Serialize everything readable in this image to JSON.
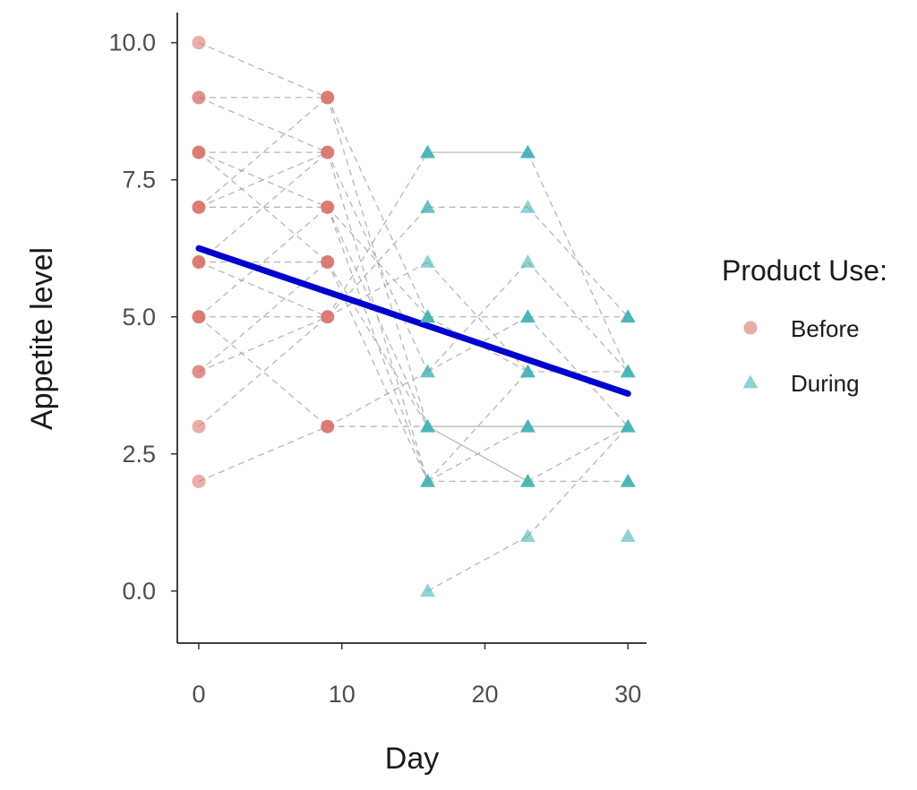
{
  "chart_data": {
    "type": "scatter",
    "xlabel": "Day",
    "ylabel": "Appetite level",
    "xlim": [
      -1.5,
      31.3
    ],
    "ylim": [
      -0.95,
      10.55
    ],
    "x_ticks": [
      0,
      10,
      20,
      30
    ],
    "y_ticks": [
      0,
      2.5,
      5,
      7.5,
      10
    ],
    "x_tick_labels": [
      "0",
      "10",
      "20",
      "30"
    ],
    "y_tick_labels": [
      "0.0",
      "2.5",
      "5.0",
      "7.5",
      "10.0"
    ],
    "grid": false,
    "legend": {
      "title": "Product Use:",
      "position": "right",
      "entries": [
        {
          "label": "Before",
          "shape": "circle",
          "color": "#d9756f"
        },
        {
          "label": "During",
          "shape": "triangle",
          "color": "#44b2b4"
        }
      ]
    },
    "series": [
      {
        "name": "Before",
        "shape": "circle",
        "color": "#d9756f",
        "points": [
          {
            "x": 0,
            "y": 10,
            "n": 1
          },
          {
            "x": 0,
            "y": 9,
            "n": 2
          },
          {
            "x": 0,
            "y": 8,
            "n": 3
          },
          {
            "x": 0,
            "y": 7,
            "n": 3
          },
          {
            "x": 0,
            "y": 6,
            "n": 3
          },
          {
            "x": 0,
            "y": 5,
            "n": 3
          },
          {
            "x": 0,
            "y": 4,
            "n": 2
          },
          {
            "x": 0,
            "y": 3,
            "n": 1
          },
          {
            "x": 0,
            "y": 2,
            "n": 1
          },
          {
            "x": 9,
            "y": 9,
            "n": 3
          },
          {
            "x": 9,
            "y": 8,
            "n": 3
          },
          {
            "x": 9,
            "y": 7,
            "n": 3
          },
          {
            "x": 9,
            "y": 6,
            "n": 3
          },
          {
            "x": 9,
            "y": 5,
            "n": 3
          },
          {
            "x": 9,
            "y": 3,
            "n": 3
          }
        ]
      },
      {
        "name": "During",
        "shape": "triangle",
        "color": "#44b2b4",
        "points": [
          {
            "x": 16,
            "y": 8,
            "n": 3
          },
          {
            "x": 16,
            "y": 7,
            "n": 2
          },
          {
            "x": 16,
            "y": 6,
            "n": 1
          },
          {
            "x": 16,
            "y": 5,
            "n": 3
          },
          {
            "x": 16,
            "y": 4,
            "n": 2
          },
          {
            "x": 16,
            "y": 3,
            "n": 3
          },
          {
            "x": 16,
            "y": 2,
            "n": 3
          },
          {
            "x": 16,
            "y": 0,
            "n": 1
          },
          {
            "x": 23,
            "y": 8,
            "n": 3
          },
          {
            "x": 23,
            "y": 7,
            "n": 1
          },
          {
            "x": 23,
            "y": 6,
            "n": 1
          },
          {
            "x": 23,
            "y": 5,
            "n": 3
          },
          {
            "x": 23,
            "y": 4,
            "n": 3
          },
          {
            "x": 23,
            "y": 3,
            "n": 3
          },
          {
            "x": 23,
            "y": 2,
            "n": 3
          },
          {
            "x": 23,
            "y": 1,
            "n": 1
          },
          {
            "x": 30,
            "y": 5,
            "n": 3
          },
          {
            "x": 30,
            "y": 4,
            "n": 3
          },
          {
            "x": 30,
            "y": 3,
            "n": 3
          },
          {
            "x": 30,
            "y": 2,
            "n": 3
          },
          {
            "x": 30,
            "y": 1,
            "n": 1
          }
        ]
      }
    ],
    "subject_lines": [
      [
        [
          0,
          10
        ],
        [
          9,
          9
        ]
      ],
      [
        [
          0,
          9
        ],
        [
          9,
          8
        ]
      ],
      [
        [
          0,
          9
        ],
        [
          9,
          9
        ]
      ],
      [
        [
          0,
          8
        ],
        [
          9,
          8
        ]
      ],
      [
        [
          0,
          8
        ],
        [
          9,
          7
        ]
      ],
      [
        [
          0,
          8
        ],
        [
          9,
          6
        ]
      ],
      [
        [
          0,
          7
        ],
        [
          9,
          7
        ]
      ],
      [
        [
          0,
          7
        ],
        [
          9,
          8
        ]
      ],
      [
        [
          0,
          7
        ],
        [
          9,
          9
        ]
      ],
      [
        [
          0,
          6
        ],
        [
          9,
          6
        ]
      ],
      [
        [
          0,
          6
        ],
        [
          9,
          8
        ]
      ],
      [
        [
          0,
          6
        ],
        [
          9,
          5
        ]
      ],
      [
        [
          0,
          5
        ],
        [
          9,
          5
        ]
      ],
      [
        [
          0,
          5
        ],
        [
          9,
          3
        ]
      ],
      [
        [
          0,
          5
        ],
        [
          9,
          7
        ]
      ],
      [
        [
          0,
          4
        ],
        [
          9,
          5
        ]
      ],
      [
        [
          0,
          4
        ],
        [
          9,
          6
        ]
      ],
      [
        [
          0,
          3
        ],
        [
          9,
          5
        ]
      ],
      [
        [
          0,
          2
        ],
        [
          9,
          3
        ]
      ],
      [
        [
          9,
          9
        ],
        [
          16,
          5
        ]
      ],
      [
        [
          9,
          9
        ],
        [
          16,
          3
        ]
      ],
      [
        [
          9,
          8
        ],
        [
          16,
          4
        ]
      ],
      [
        [
          9,
          8
        ],
        [
          16,
          2
        ]
      ],
      [
        [
          9,
          7
        ],
        [
          16,
          5
        ]
      ],
      [
        [
          9,
          7
        ],
        [
          16,
          2
        ]
      ],
      [
        [
          9,
          7
        ],
        [
          16,
          3
        ]
      ],
      [
        [
          9,
          6
        ],
        [
          16,
          3
        ]
      ],
      [
        [
          9,
          6
        ],
        [
          16,
          2
        ]
      ],
      [
        [
          9,
          5
        ],
        [
          16,
          7
        ]
      ],
      [
        [
          9,
          5
        ],
        [
          16,
          8
        ]
      ],
      [
        [
          9,
          3
        ],
        [
          16,
          3
        ]
      ],
      [
        [
          9,
          3
        ],
        [
          16,
          4
        ]
      ],
      [
        [
          9,
          5
        ],
        [
          16,
          6
        ]
      ],
      [
        [
          16,
          8
        ],
        [
          23,
          8
        ]
      ],
      [
        [
          16,
          7
        ],
        [
          23,
          7
        ]
      ],
      [
        [
          16,
          5
        ],
        [
          23,
          5
        ]
      ],
      [
        [
          16,
          3
        ],
        [
          23,
          3
        ]
      ],
      [
        [
          16,
          3
        ],
        [
          23,
          2
        ]
      ],
      [
        [
          16,
          2
        ],
        [
          23,
          2
        ]
      ],
      [
        [
          16,
          2
        ],
        [
          23,
          4
        ]
      ],
      [
        [
          16,
          0
        ],
        [
          23,
          1
        ]
      ],
      [
        [
          16,
          4
        ],
        [
          23,
          5
        ]
      ],
      [
        [
          16,
          5
        ],
        [
          23,
          4
        ]
      ],
      [
        [
          16,
          6
        ],
        [
          23,
          4
        ]
      ],
      [
        [
          16,
          4
        ],
        [
          23,
          6
        ]
      ],
      [
        [
          16,
          2
        ],
        [
          23,
          3
        ]
      ],
      [
        [
          23,
          8
        ],
        [
          30,
          4
        ]
      ],
      [
        [
          23,
          7
        ],
        [
          30,
          5
        ]
      ],
      [
        [
          23,
          6
        ],
        [
          30,
          4
        ]
      ],
      [
        [
          23,
          5
        ],
        [
          30,
          5
        ]
      ],
      [
        [
          23,
          4
        ],
        [
          30,
          4
        ]
      ],
      [
        [
          23,
          3
        ],
        [
          30,
          3
        ]
      ],
      [
        [
          23,
          2
        ],
        [
          30,
          2
        ]
      ],
      [
        [
          23,
          1
        ],
        [
          30,
          3
        ]
      ],
      [
        [
          23,
          2
        ],
        [
          30,
          3
        ]
      ],
      [
        [
          23,
          5
        ],
        [
          30,
          3
        ]
      ]
    ],
    "solid_subject_lines": [
      [
        [
          16,
          8
        ],
        [
          23,
          8
        ]
      ],
      [
        [
          16,
          3
        ],
        [
          23,
          3
        ]
      ],
      [
        [
          16,
          3
        ],
        [
          23,
          2
        ]
      ],
      [
        [
          23,
          3
        ],
        [
          30,
          3
        ]
      ]
    ],
    "trend_line": {
      "color": "#0000cc",
      "x": [
        0,
        30
      ],
      "y": [
        6.25,
        3.6
      ]
    }
  }
}
